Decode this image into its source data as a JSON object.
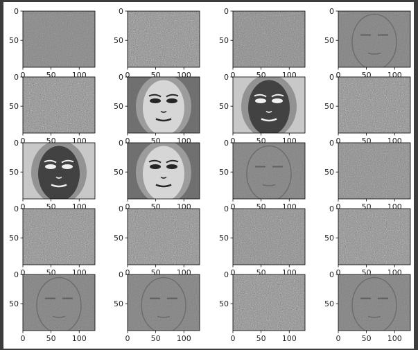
{
  "figure": {
    "grid": [
      5,
      4
    ],
    "background": "#ffffff",
    "window_border": "#3c3c3c"
  },
  "chart_data": {
    "type": "image-grid",
    "rows": 5,
    "cols": 4,
    "xlim": [
      0,
      128
    ],
    "ylim": [
      96,
      0
    ],
    "xticks": [
      "0",
      "50",
      "100"
    ],
    "yticks": [
      "0",
      "50"
    ],
    "colormap": "gray",
    "panels": [
      {
        "row": 0,
        "col": 0,
        "content": "noise",
        "contrast": 0.55
      },
      {
        "row": 0,
        "col": 1,
        "content": "noise",
        "contrast": 1.0
      },
      {
        "row": 0,
        "col": 2,
        "content": "noise",
        "contrast": 0.8
      },
      {
        "row": 0,
        "col": 3,
        "content": "faint-face",
        "contrast": 0.3
      },
      {
        "row": 1,
        "col": 0,
        "content": "noise",
        "contrast": 1.0
      },
      {
        "row": 1,
        "col": 1,
        "content": "face",
        "contrast": 0.55
      },
      {
        "row": 1,
        "col": 2,
        "content": "face-inverted",
        "contrast": 1.0
      },
      {
        "row": 1,
        "col": 3,
        "content": "noise",
        "contrast": 1.0
      },
      {
        "row": 2,
        "col": 0,
        "content": "face-inverted",
        "contrast": 1.0
      },
      {
        "row": 2,
        "col": 1,
        "content": "face",
        "contrast": 0.55
      },
      {
        "row": 2,
        "col": 2,
        "content": "faint-face",
        "contrast": 0.3
      },
      {
        "row": 2,
        "col": 3,
        "content": "noise",
        "contrast": 0.85
      },
      {
        "row": 3,
        "col": 0,
        "content": "noise",
        "contrast": 1.0
      },
      {
        "row": 3,
        "col": 1,
        "content": "noise",
        "contrast": 1.0
      },
      {
        "row": 3,
        "col": 2,
        "content": "noise",
        "contrast": 0.9
      },
      {
        "row": 3,
        "col": 3,
        "content": "noise",
        "contrast": 1.0
      },
      {
        "row": 4,
        "col": 0,
        "content": "faint-face",
        "contrast": 0.3
      },
      {
        "row": 4,
        "col": 1,
        "content": "faint-face",
        "contrast": 0.3
      },
      {
        "row": 4,
        "col": 2,
        "content": "noise",
        "contrast": 1.0
      },
      {
        "row": 4,
        "col": 3,
        "content": "faint-face",
        "contrast": 0.35
      }
    ]
  }
}
